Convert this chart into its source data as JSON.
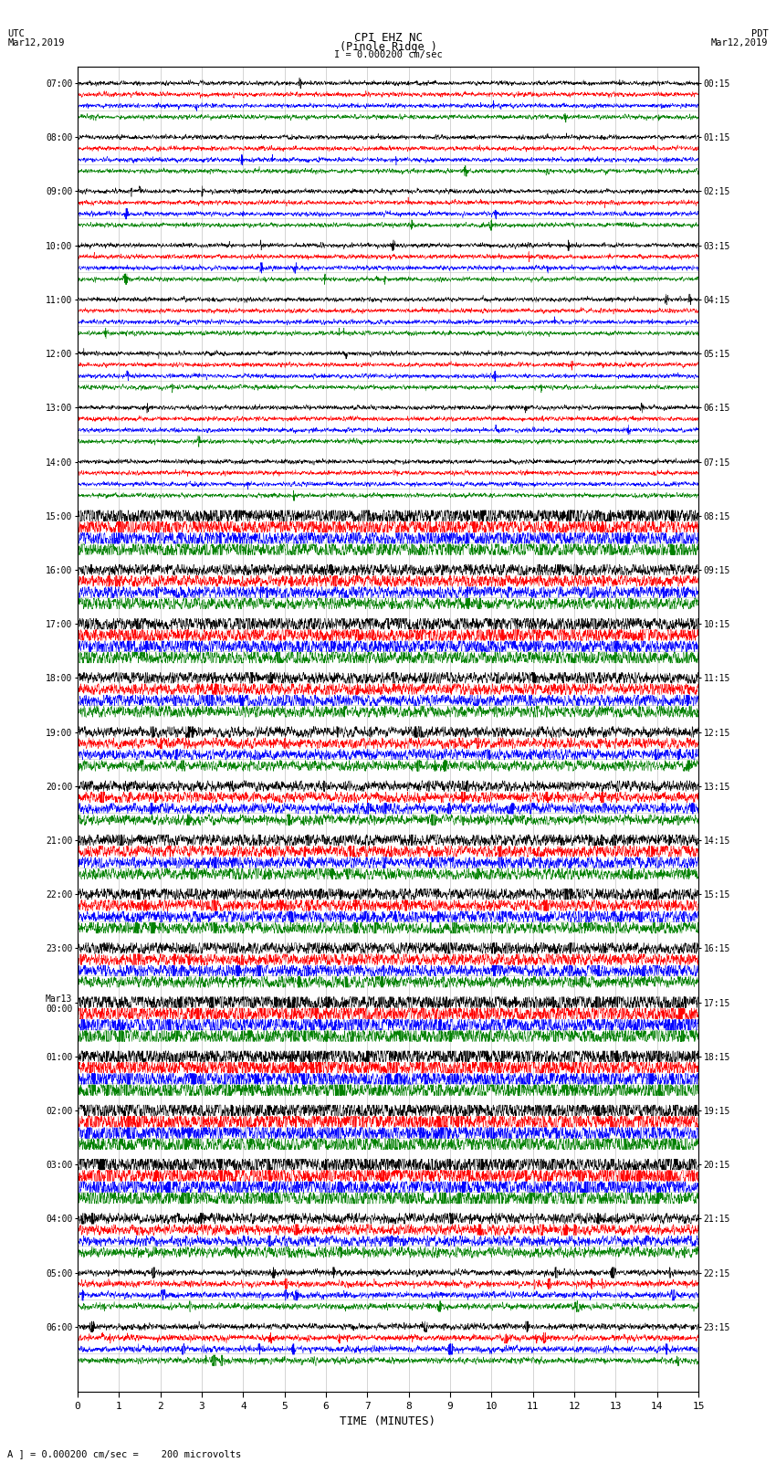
{
  "title_line1": "CPI EHZ NC",
  "title_line2": "(Pinole Ridge )",
  "scale_label": "I = 0.000200 cm/sec",
  "utc_label": "UTC",
  "utc_date": "Mar12,2019",
  "pdt_label": "PDT",
  "pdt_date": "Mar12,2019",
  "footer_label": "A ] = 0.000200 cm/sec =    200 microvolts",
  "xlabel": "TIME (MINUTES)",
  "left_times": [
    "07:00",
    "08:00",
    "09:00",
    "10:00",
    "11:00",
    "12:00",
    "13:00",
    "14:00",
    "15:00",
    "16:00",
    "17:00",
    "18:00",
    "19:00",
    "20:00",
    "21:00",
    "22:00",
    "23:00",
    "Mar13\n00:00",
    "01:00",
    "02:00",
    "03:00",
    "04:00",
    "05:00",
    "06:00"
  ],
  "right_times": [
    "00:15",
    "01:15",
    "02:15",
    "03:15",
    "04:15",
    "05:15",
    "06:15",
    "07:15",
    "08:15",
    "09:15",
    "10:15",
    "11:15",
    "12:15",
    "13:15",
    "14:15",
    "15:15",
    "16:15",
    "17:15",
    "18:15",
    "19:15",
    "20:15",
    "21:15",
    "22:15",
    "23:15"
  ],
  "num_rows": 24,
  "traces_per_row": 4,
  "colors": [
    "black",
    "red",
    "blue",
    "green"
  ],
  "bg_color": "#ffffff",
  "grid_color": "#aaaaaa",
  "xlim": [
    0,
    15
  ],
  "xticks": [
    0,
    1,
    2,
    3,
    4,
    5,
    6,
    7,
    8,
    9,
    10,
    11,
    12,
    13,
    14,
    15
  ]
}
